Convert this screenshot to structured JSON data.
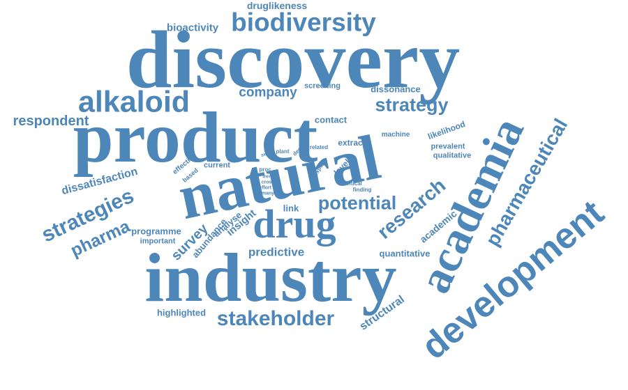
{
  "words": {
    "druglikeness": "druglikeness",
    "bioactivity": "bioactivity",
    "biodiversity": "biodiversity",
    "discovery": "discovery",
    "alkaloid": "alkaloid",
    "company": "company",
    "screening": "screening",
    "dissonance": "dissonance",
    "strategy": "strategy",
    "respondent": "respondent",
    "product": "product",
    "contact": "contact",
    "machine": "machine",
    "likelihood": "likelihood",
    "prevalent": "prevalent",
    "qualitative": "qualitative",
    "extract": "extract",
    "series": "series",
    "plant": "plant",
    "decade": "decade",
    "related": "related",
    "effective": "effective",
    "based": "based",
    "current": "current",
    "proc": "proc",
    "trend": "trend",
    "cross": "cross",
    "effort": "effort",
    "many": "many",
    "level": "level",
    "expert": "expert",
    "critical": "critical",
    "finding": "finding",
    "dissatisfaction": "dissatisfaction",
    "natural": "natural",
    "strategies": "strategies",
    "pharma": "pharma",
    "potential": "potential",
    "link": "link",
    "research": "research",
    "academic": "academic",
    "academia": "academia",
    "pharmaceutical": "pharmaceutical",
    "drug": "drug",
    "programme": "programme",
    "important": "important",
    "survey": "survey",
    "abundance": "abundance",
    "analyse": "analyse",
    "insight": "insight",
    "predictive": "predictive",
    "quantitative": "quantitative",
    "industry": "industry",
    "development": "development",
    "structural": "structural",
    "highlighted": "highlighted",
    "stakeholder": "stakeholder"
  },
  "colors": {
    "word": "#4d86b8",
    "background": "#ffffff"
  }
}
